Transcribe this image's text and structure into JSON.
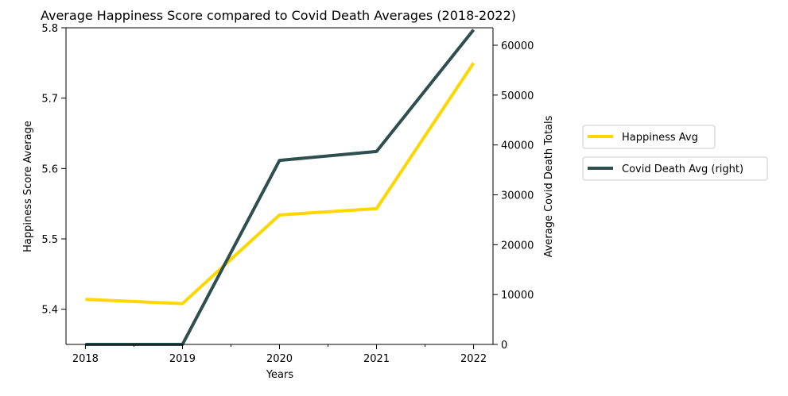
{
  "chart_data": {
    "type": "line",
    "title": "Average Happiness Score compared to Covid Death Averages (2018-2022)",
    "xlabel": "Years",
    "ylabel": "Happiness Score Average",
    "y2label": "Average Covid Death Totals",
    "categories": [
      "2018",
      "2019",
      "2020",
      "2021",
      "2022"
    ],
    "xlim": [
      2017.8,
      2022.2
    ],
    "ylim": [
      5.35,
      5.8
    ],
    "y2lim": [
      0,
      63500
    ],
    "yticks": [
      5.4,
      5.5,
      5.6,
      5.7,
      5.8
    ],
    "ytick_labels": [
      "5.4",
      "5.5",
      "5.6",
      "5.7",
      "5.8"
    ],
    "y2ticks": [
      0,
      10000,
      20000,
      30000,
      40000,
      50000,
      60000
    ],
    "y2tick_labels": [
      "0",
      "10000",
      "20000",
      "30000",
      "40000",
      "50000",
      "60000"
    ],
    "grid": false,
    "legend_position": "right, outside plot",
    "series": [
      {
        "name": "Happiness Avg",
        "axis": "left",
        "color": "#FFD700",
        "values": [
          5.414,
          5.408,
          5.534,
          5.543,
          5.75
        ]
      },
      {
        "name": "Covid Death Avg (right)",
        "axis": "right",
        "color": "#2F4F4F",
        "values": [
          0,
          0,
          36900,
          38700,
          63100
        ]
      }
    ]
  }
}
